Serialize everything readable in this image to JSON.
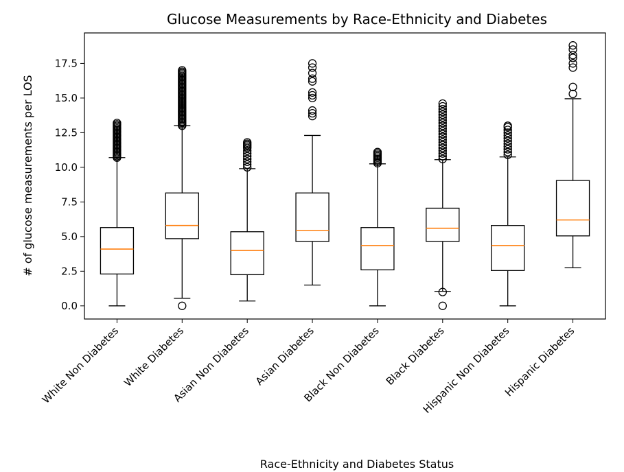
{
  "chart_data": {
    "type": "box",
    "title": "Glucose Measurements by Race-Ethnicity and Diabetes",
    "xlabel": "Race-Ethnicity and Diabetes Status",
    "ylabel": "# of glucose measurements per LOS",
    "ylim": [
      -0.95,
      19.7
    ],
    "yticks": [
      0.0,
      2.5,
      5.0,
      7.5,
      10.0,
      12.5,
      15.0,
      17.5
    ],
    "ytick_labels": [
      "0.0",
      "2.5",
      "5.0",
      "7.5",
      "10.0",
      "12.5",
      "15.0",
      "17.5"
    ],
    "grid": false,
    "median_color": "#ff7f0e",
    "box_color": "#000000",
    "categories": [
      "White Non Diabetes",
      "White Diabetes",
      "Asian Non Diabetes",
      "Asian Diabetes",
      "Black Non Diabetes",
      "Black Diabetes",
      "Hispanic Non Diabetes",
      "Hispanic Diabetes"
    ],
    "boxes": [
      {
        "whislo": 0.0,
        "q1": 2.3,
        "med": 4.1,
        "q3": 5.65,
        "whishi": 10.7,
        "fliers": [
          10.7,
          10.8,
          10.9,
          11.0,
          11.1,
          11.2,
          11.3,
          11.4,
          11.5,
          11.6,
          11.7,
          11.8,
          11.9,
          12.0,
          12.1,
          12.2,
          12.3,
          12.4,
          12.5,
          12.6,
          12.7,
          12.8,
          12.9,
          13.0,
          13.1,
          13.2
        ]
      },
      {
        "whislo": 0.55,
        "q1": 4.85,
        "med": 5.8,
        "q3": 8.15,
        "whishi": 13.0,
        "fliers": [
          0.0,
          13.0,
          13.1,
          13.2,
          13.3,
          13.4,
          13.5,
          13.6,
          13.7,
          13.8,
          13.9,
          14.0,
          14.1,
          14.2,
          14.3,
          14.4,
          14.5,
          14.6,
          14.7,
          14.8,
          14.9,
          15.0,
          15.1,
          15.2,
          15.3,
          15.4,
          15.5,
          15.6,
          15.7,
          15.8,
          15.9,
          16.0,
          16.1,
          16.2,
          16.3,
          16.4,
          16.5,
          16.6,
          16.7,
          16.8,
          16.9,
          17.0
        ]
      },
      {
        "whislo": 0.35,
        "q1": 2.25,
        "med": 4.0,
        "q3": 5.35,
        "whishi": 9.9,
        "fliers": [
          10.0,
          10.2,
          10.4,
          10.6,
          10.8,
          11.0,
          11.2,
          11.4,
          11.5,
          11.6,
          11.7,
          11.8
        ]
      },
      {
        "whislo": 1.5,
        "q1": 4.65,
        "med": 5.45,
        "q3": 8.15,
        "whishi": 12.3,
        "fliers": [
          13.7,
          13.9,
          14.1,
          15.0,
          15.2,
          15.4,
          16.2,
          16.4,
          16.8,
          17.2,
          17.5
        ]
      },
      {
        "whislo": 0.0,
        "q1": 2.6,
        "med": 4.35,
        "q3": 5.65,
        "whishi": 10.25,
        "fliers": [
          10.3,
          10.4,
          10.5,
          10.6,
          10.7,
          10.8,
          10.9,
          11.0,
          11.1
        ]
      },
      {
        "whislo": 1.05,
        "q1": 4.65,
        "med": 5.6,
        "q3": 7.05,
        "whishi": 10.55,
        "fliers": [
          0.0,
          1.0,
          10.6,
          10.8,
          11.0,
          11.2,
          11.4,
          11.6,
          11.8,
          12.0,
          12.2,
          12.4,
          12.6,
          12.8,
          13.0,
          13.2,
          13.4,
          13.6,
          13.8,
          14.0,
          14.2,
          14.4,
          14.6
        ]
      },
      {
        "whislo": 0.0,
        "q1": 2.55,
        "med": 4.35,
        "q3": 5.8,
        "whishi": 10.75,
        "fliers": [
          10.9,
          11.1,
          11.3,
          11.5,
          11.7,
          11.9,
          12.1,
          12.3,
          12.5,
          12.7,
          12.9,
          13.0
        ]
      },
      {
        "whislo": 2.75,
        "q1": 5.05,
        "med": 6.2,
        "q3": 9.05,
        "whishi": 14.95,
        "fliers": [
          15.3,
          15.8,
          17.2,
          17.5,
          17.9,
          18.1,
          18.5,
          18.8
        ]
      }
    ]
  }
}
